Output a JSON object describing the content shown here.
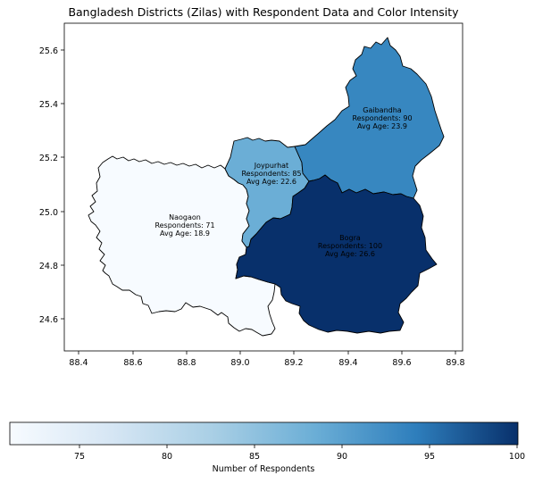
{
  "title": "Bangladesh Districts (Zilas) with Respondent Data and Color Intensity",
  "x_ticks": [
    "88.4",
    "88.6",
    "88.8",
    "89.0",
    "89.2",
    "89.4",
    "89.6",
    "89.8"
  ],
  "y_ticks": [
    "25.6",
    "25.4",
    "25.2",
    "25.0",
    "24.8",
    "24.6"
  ],
  "colorbar": {
    "label": "Number of Respondents",
    "ticks": [
      "75",
      "80",
      "85",
      "90",
      "95",
      "100"
    ],
    "min": 71,
    "max": 100
  },
  "districts": [
    {
      "name": "Naogaon",
      "respondents_label": "Respondents: 71",
      "age_label": "Avg Age: 18.9",
      "respondents": 71,
      "color": "#f7fbff"
    },
    {
      "name": "Joypurhat",
      "respondents_label": "Respondents: 85",
      "age_label": "Avg Age: 22.6",
      "respondents": 85,
      "color": "#6baed6"
    },
    {
      "name": "Gaibandha",
      "respondents_label": "Respondents: 90",
      "age_label": "Avg Age: 23.9",
      "respondents": 90,
      "color": "#3787c0"
    },
    {
      "name": "Bogra",
      "respondents_label": "Respondents: 100",
      "age_label": "Avg Age: 26.6",
      "respondents": 100,
      "color": "#08306b"
    }
  ]
}
